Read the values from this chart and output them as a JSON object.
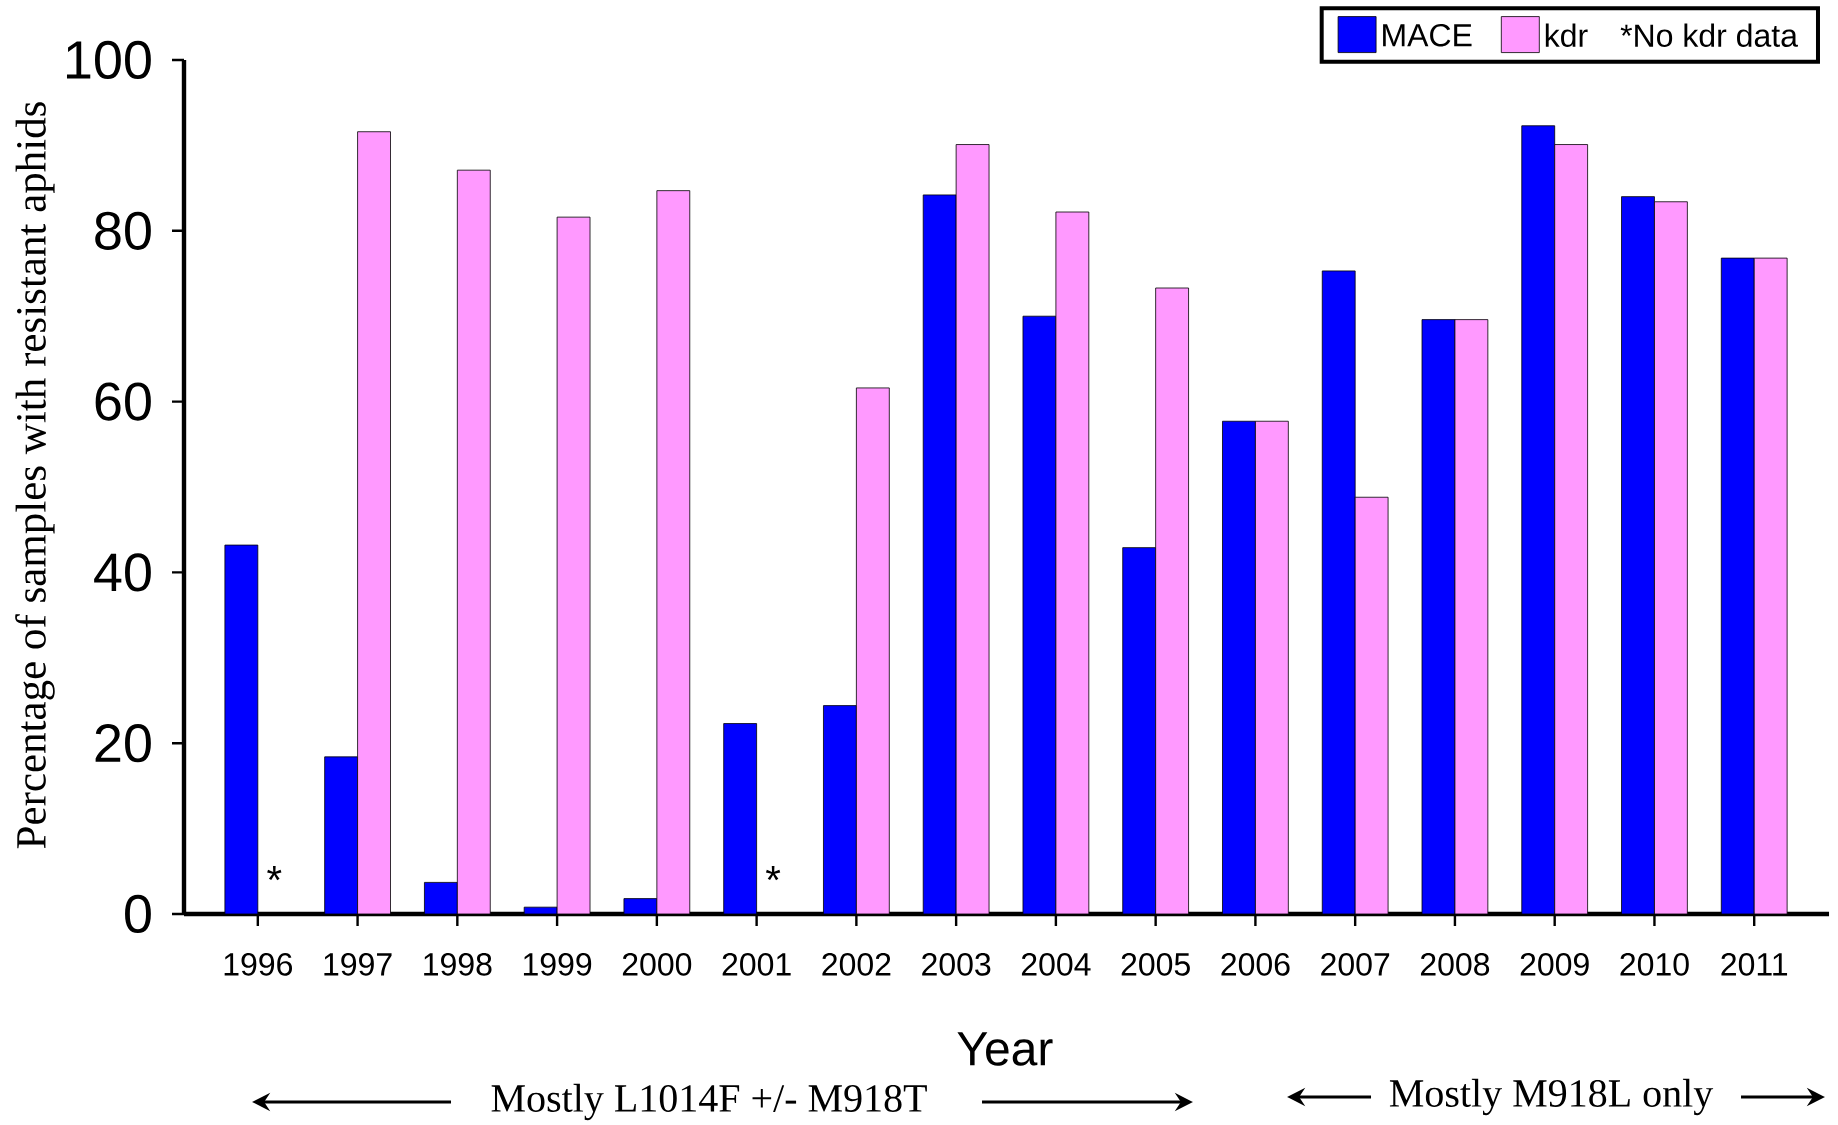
{
  "chart_data": {
    "type": "bar",
    "xlabel": "Year",
    "ylabel": "Percentage of samples with resistant aphids",
    "categories": [
      "1996",
      "1997",
      "1998",
      "1999",
      "2000",
      "2001",
      "2002",
      "2003",
      "2004",
      "2005",
      "2006",
      "2007",
      "2008",
      "2009",
      "2010",
      "2011"
    ],
    "series": [
      {
        "name": "MACE",
        "color": "#0000ff",
        "values": [
          43.2,
          18.4,
          3.7,
          0.8,
          1.8,
          22.3,
          24.4,
          84.2,
          70,
          42.9,
          57.7,
          75.3,
          69.6,
          92.3,
          84,
          76.8
        ]
      },
      {
        "name": "kdr",
        "color": "#ff99ff",
        "values": [
          null,
          91.6,
          87.1,
          81.6,
          84.7,
          null,
          61.6,
          90.1,
          82.2,
          73.3,
          57.7,
          48.8,
          69.6,
          90.1,
          83.4,
          76.8
        ]
      }
    ],
    "ylim": [
      0,
      100
    ],
    "yticks": [
      0,
      20,
      40,
      60,
      80,
      100
    ],
    "legend": "top right",
    "annotations": [
      "*No kdr data",
      {
        "text": "*",
        "x": "1996",
        "y": 4
      },
      {
        "text": "*",
        "x": "2001",
        "y": 4
      },
      "Mostly L1014F +/- M918T",
      "Mostly M918L only"
    ]
  }
}
